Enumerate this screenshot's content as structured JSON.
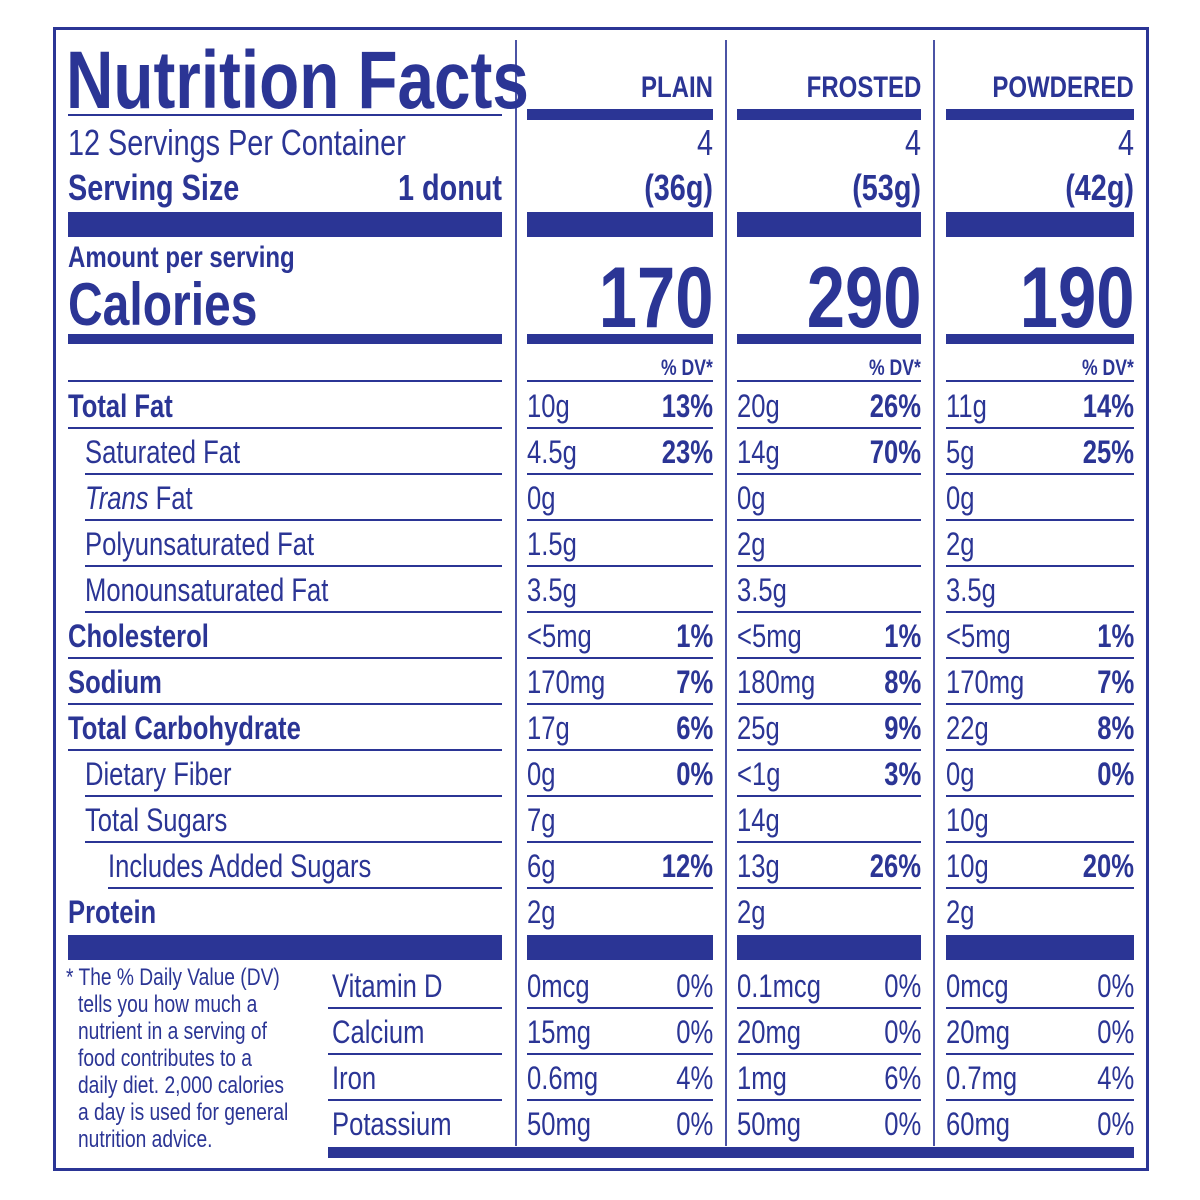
{
  "title": "Nutrition Facts",
  "servings_per_container": "12 Servings Per Container",
  "serving_size_label": "Serving Size",
  "serving_size_value": "1 donut",
  "amount_per_serving": "Amount per serving",
  "calories_label": "Calories",
  "dv_header": "% DV*",
  "columns": [
    {
      "name": "PLAIN",
      "servings": "4",
      "serving_size": "(36g)",
      "calories": "170"
    },
    {
      "name": "FROSTED",
      "servings": "4",
      "serving_size": "(53g)",
      "calories": "290"
    },
    {
      "name": "POWDERED",
      "servings": "4",
      "serving_size": "(42g)",
      "calories": "190"
    }
  ],
  "nutrients": [
    {
      "label": "Total Fat",
      "bold": true,
      "indent": 0,
      "values": [
        [
          "10g",
          "13%"
        ],
        [
          "20g",
          "26%"
        ],
        [
          "11g",
          "14%"
        ]
      ]
    },
    {
      "label": "Saturated Fat",
      "bold": false,
      "indent": 1,
      "values": [
        [
          "4.5g",
          "23%"
        ],
        [
          "14g",
          "70%"
        ],
        [
          "5g",
          "25%"
        ]
      ]
    },
    {
      "label": "Trans",
      "label_suffix": " Fat",
      "italic_prefix": true,
      "bold": false,
      "indent": 1,
      "values": [
        [
          "0g",
          ""
        ],
        [
          "0g",
          ""
        ],
        [
          "0g",
          ""
        ]
      ]
    },
    {
      "label": "Polyunsaturated Fat",
      "bold": false,
      "indent": 1,
      "values": [
        [
          "1.5g",
          ""
        ],
        [
          "2g",
          ""
        ],
        [
          "2g",
          ""
        ]
      ]
    },
    {
      "label": "Monounsaturated Fat",
      "bold": false,
      "indent": 1,
      "values": [
        [
          "3.5g",
          ""
        ],
        [
          "3.5g",
          ""
        ],
        [
          "3.5g",
          ""
        ]
      ]
    },
    {
      "label": "Cholesterol",
      "bold": true,
      "indent": 0,
      "values": [
        [
          "<5mg",
          "1%"
        ],
        [
          "<5mg",
          "1%"
        ],
        [
          "<5mg",
          "1%"
        ]
      ]
    },
    {
      "label": "Sodium",
      "bold": true,
      "indent": 0,
      "values": [
        [
          "170mg",
          "7%"
        ],
        [
          "180mg",
          "8%"
        ],
        [
          "170mg",
          "7%"
        ]
      ]
    },
    {
      "label": "Total Carbohydrate",
      "bold": true,
      "indent": 0,
      "values": [
        [
          "17g",
          "6%"
        ],
        [
          "25g",
          "9%"
        ],
        [
          "22g",
          "8%"
        ]
      ]
    },
    {
      "label": "Dietary Fiber",
      "bold": false,
      "indent": 1,
      "values": [
        [
          "0g",
          "0%"
        ],
        [
          "<1g",
          "3%"
        ],
        [
          "0g",
          "0%"
        ]
      ]
    },
    {
      "label": "Total Sugars",
      "bold": false,
      "indent": 1,
      "values": [
        [
          "7g",
          ""
        ],
        [
          "14g",
          ""
        ],
        [
          "10g",
          ""
        ]
      ]
    },
    {
      "label": "Includes Added Sugars",
      "bold": false,
      "indent": 2,
      "values": [
        [
          "6g",
          "12%"
        ],
        [
          "13g",
          "26%"
        ],
        [
          "10g",
          "20%"
        ]
      ]
    },
    {
      "label": "Protein",
      "bold": true,
      "indent": 0,
      "values": [
        [
          "2g",
          ""
        ],
        [
          "2g",
          ""
        ],
        [
          "2g",
          ""
        ]
      ]
    }
  ],
  "vitamins": [
    {
      "label": "Vitamin D",
      "values": [
        [
          "0mcg",
          "0%"
        ],
        [
          "0.1mcg",
          "0%"
        ],
        [
          "0mcg",
          "0%"
        ]
      ]
    },
    {
      "label": "Calcium",
      "values": [
        [
          "15mg",
          "0%"
        ],
        [
          "20mg",
          "0%"
        ],
        [
          "20mg",
          "0%"
        ]
      ]
    },
    {
      "label": "Iron",
      "values": [
        [
          "0.6mg",
          "4%"
        ],
        [
          "1mg",
          "6%"
        ],
        [
          "0.7mg",
          "4%"
        ]
      ]
    },
    {
      "label": "Potassium",
      "values": [
        [
          "50mg",
          "0%"
        ],
        [
          "50mg",
          "0%"
        ],
        [
          "60mg",
          "0%"
        ]
      ]
    }
  ],
  "footnote_lines": [
    "* The % Daily Value (DV)",
    "tells you how much a",
    "nutrient in a serving of",
    "food contributes to a",
    "daily diet. 2,000 calories",
    "a day is used for general",
    "nutrition advice."
  ],
  "colors": {
    "ink": "#2b3595",
    "background": "#ffffff"
  }
}
